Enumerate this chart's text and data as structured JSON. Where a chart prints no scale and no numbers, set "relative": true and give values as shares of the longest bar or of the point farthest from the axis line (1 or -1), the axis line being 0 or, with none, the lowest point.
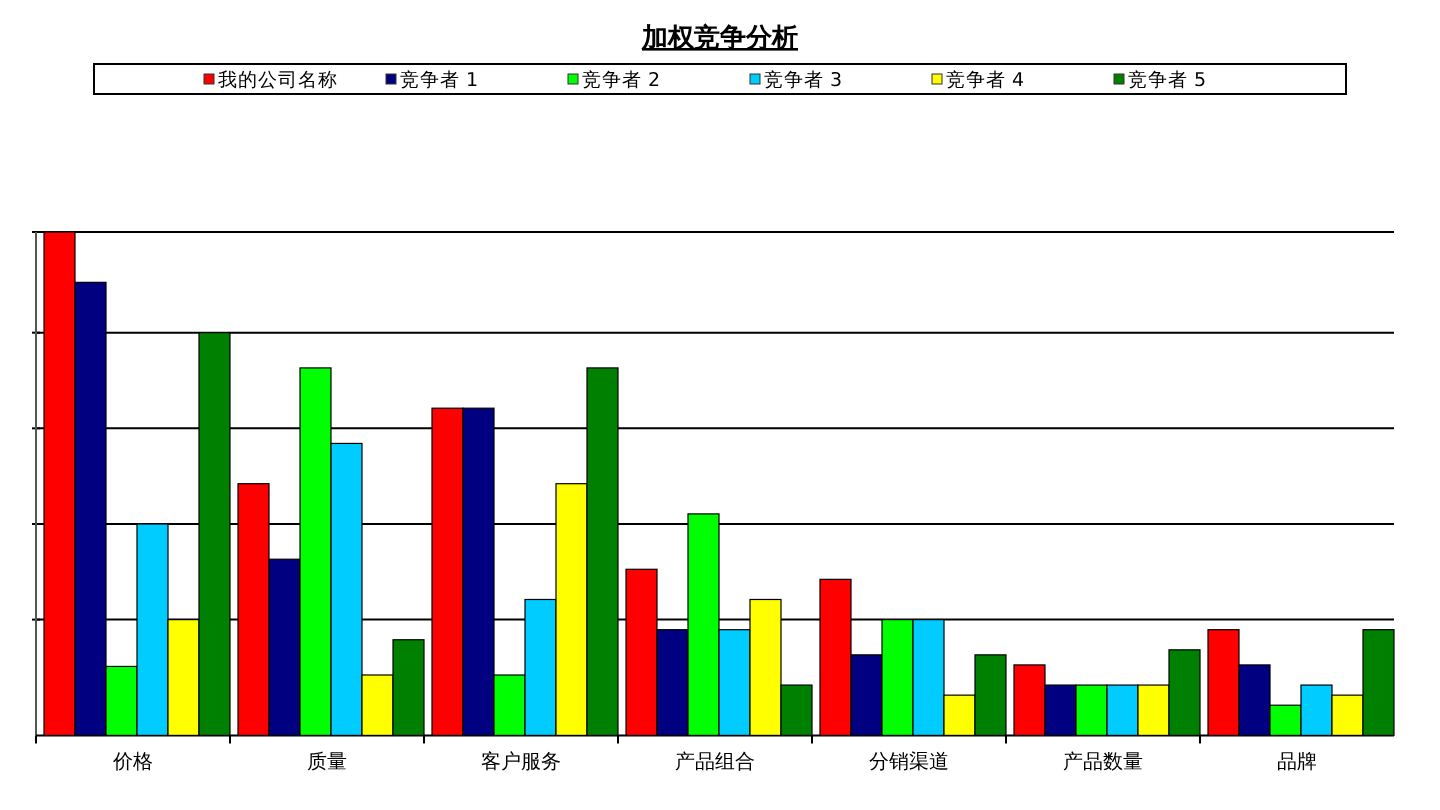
{
  "chart_data": {
    "type": "bar",
    "title": "加权竞争分析",
    "relative": true,
    "grid": "y",
    "legend": "top",
    "categories": [
      "价格",
      "质量",
      "客户服务",
      "产品组合",
      "分销渠道",
      "产品数量",
      "品牌"
    ],
    "series": [
      {
        "name": "我的公司名称",
        "color": "#ff0000",
        "values": [
          1.0,
          0.5,
          0.65,
          0.33,
          0.31,
          0.14,
          0.21
        ]
      },
      {
        "name": "竞争者 1",
        "color": "#000080",
        "values": [
          0.9,
          0.35,
          0.65,
          0.21,
          0.16,
          0.1,
          0.14
        ]
      },
      {
        "name": "竞争者 2",
        "color": "#00ff00",
        "values": [
          0.137,
          0.73,
          0.12,
          0.44,
          0.23,
          0.1,
          0.06
        ]
      },
      {
        "name": "竞争者 3",
        "color": "#00ccff",
        "values": [
          0.42,
          0.58,
          0.27,
          0.21,
          0.23,
          0.1,
          0.1
        ]
      },
      {
        "name": "竞争者 4",
        "color": "#ffff00",
        "values": [
          0.23,
          0.12,
          0.5,
          0.27,
          0.08,
          0.1,
          0.08
        ]
      },
      {
        "name": "竞争者 5",
        "color": "#008000",
        "values": [
          0.8,
          0.19,
          0.73,
          0.1,
          0.16,
          0.17,
          0.21
        ]
      }
    ]
  }
}
